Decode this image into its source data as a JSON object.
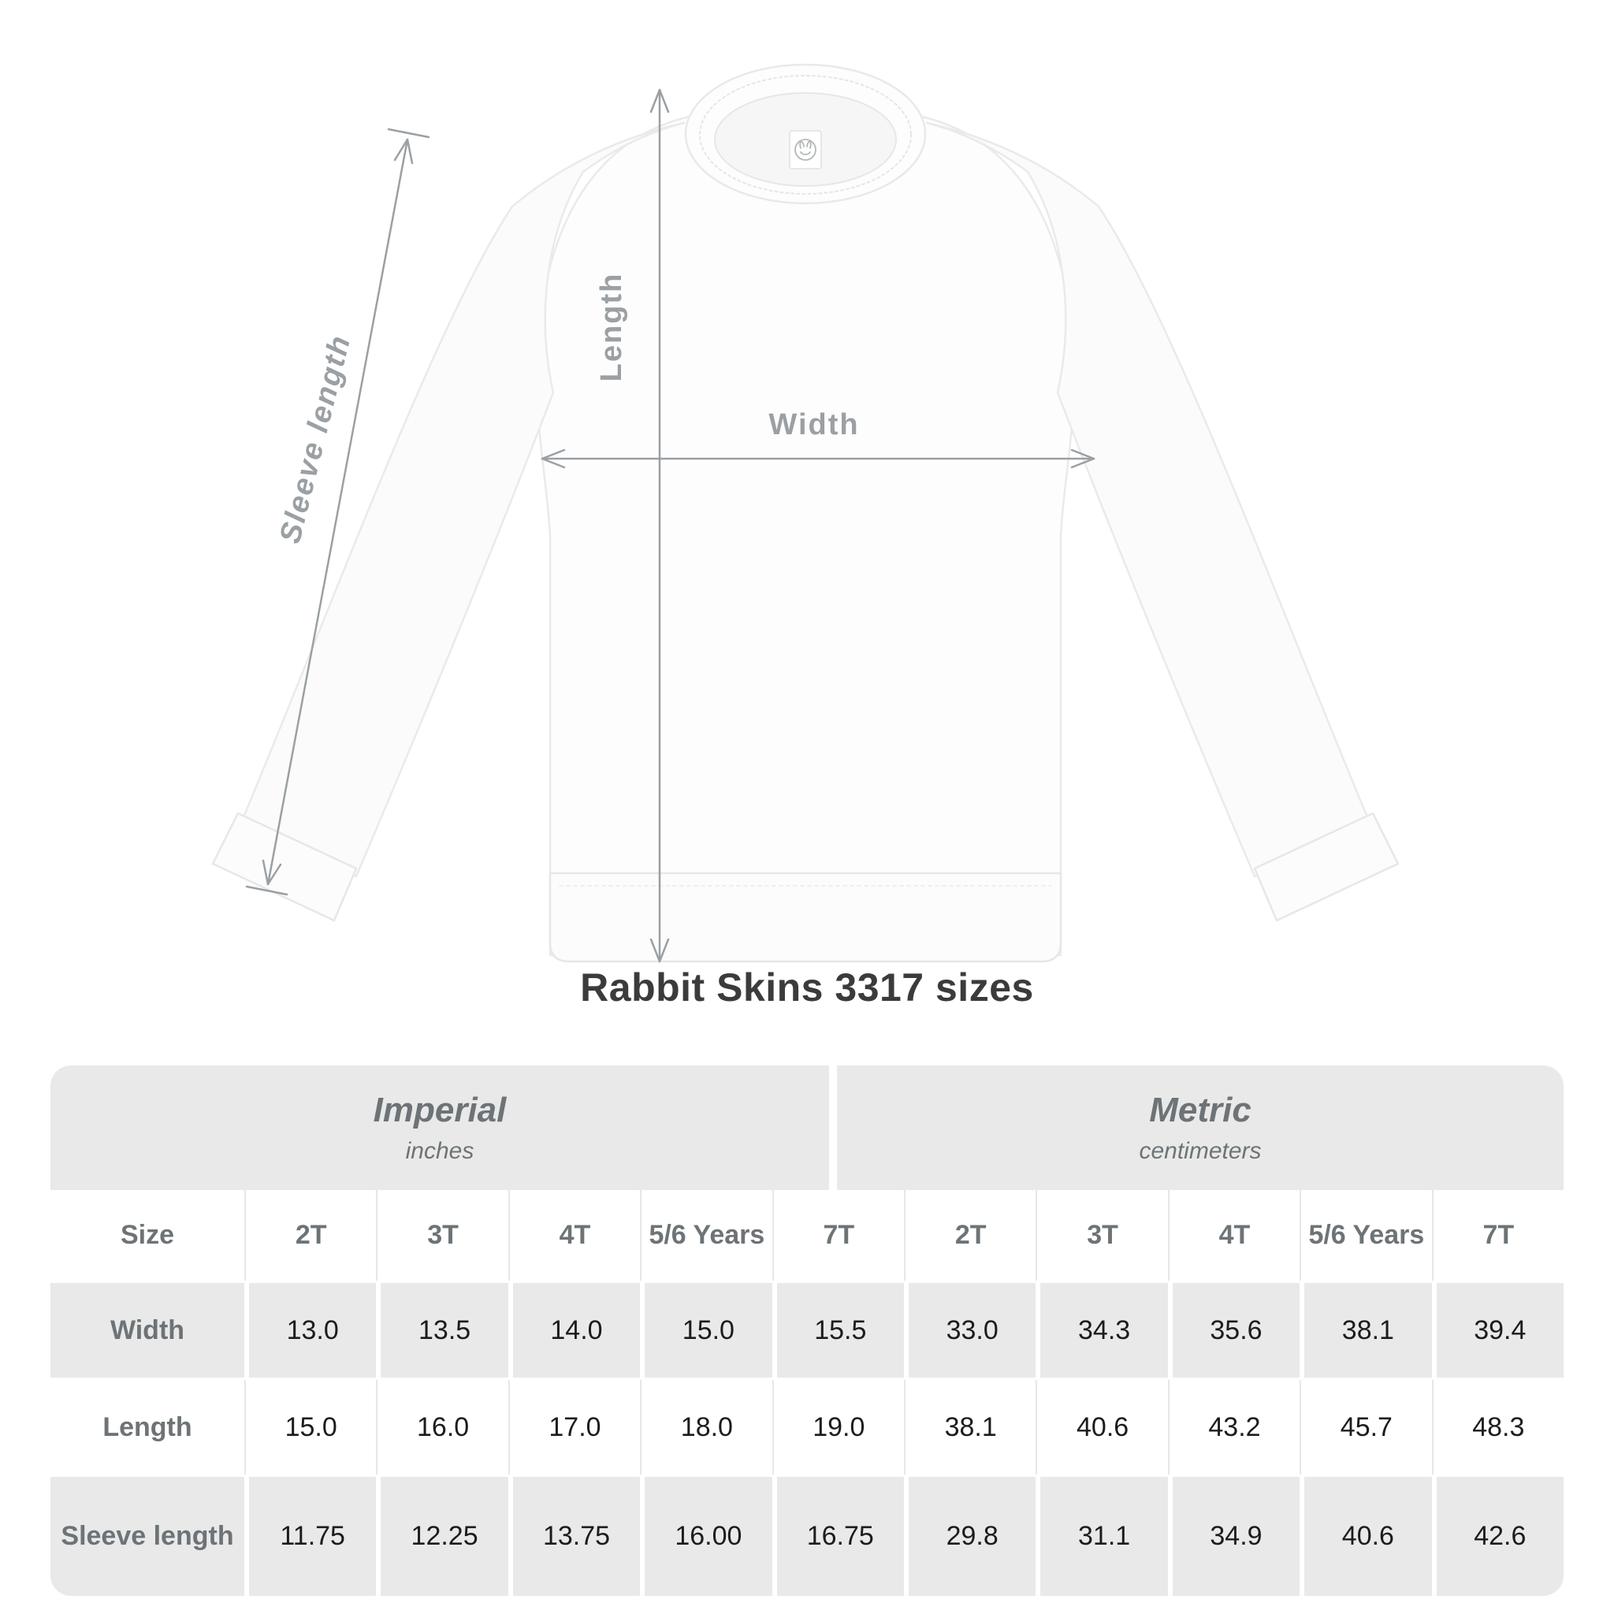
{
  "diagram": {
    "labels": {
      "length": "Length",
      "width": "Width",
      "sleeve": "Sleeve length"
    }
  },
  "title": "Rabbit Skins 3317 sizes",
  "table": {
    "groups": [
      {
        "name": "Imperial",
        "unit": "inches"
      },
      {
        "name": "Metric",
        "unit": "centimeters"
      }
    ],
    "size_col_header": "Size",
    "sizes": [
      "2T",
      "3T",
      "4T",
      "5/6 Years",
      "7T"
    ],
    "rows": [
      {
        "label": "Width",
        "imperial": [
          "13.0",
          "13.5",
          "14.0",
          "15.0",
          "15.5"
        ],
        "metric": [
          "33.0",
          "34.3",
          "35.6",
          "38.1",
          "39.4"
        ]
      },
      {
        "label": "Length",
        "imperial": [
          "15.0",
          "16.0",
          "17.0",
          "18.0",
          "19.0"
        ],
        "metric": [
          "38.1",
          "40.6",
          "43.2",
          "45.7",
          "48.3"
        ]
      },
      {
        "label": "Sleeve length",
        "imperial": [
          "11.75",
          "12.25",
          "13.75",
          "16.00",
          "16.75"
        ],
        "metric": [
          "29.8",
          "31.1",
          "34.9",
          "40.6",
          "42.6"
        ]
      }
    ]
  },
  "colors": {
    "row_gray": "#e9e9e9",
    "label_gray": "#6d7376",
    "number_dark": "#1c1c1e",
    "arrow_gray": "#9aa0a4",
    "title_dark": "#3b3b3d",
    "garment_outline": "#eaeaea"
  }
}
